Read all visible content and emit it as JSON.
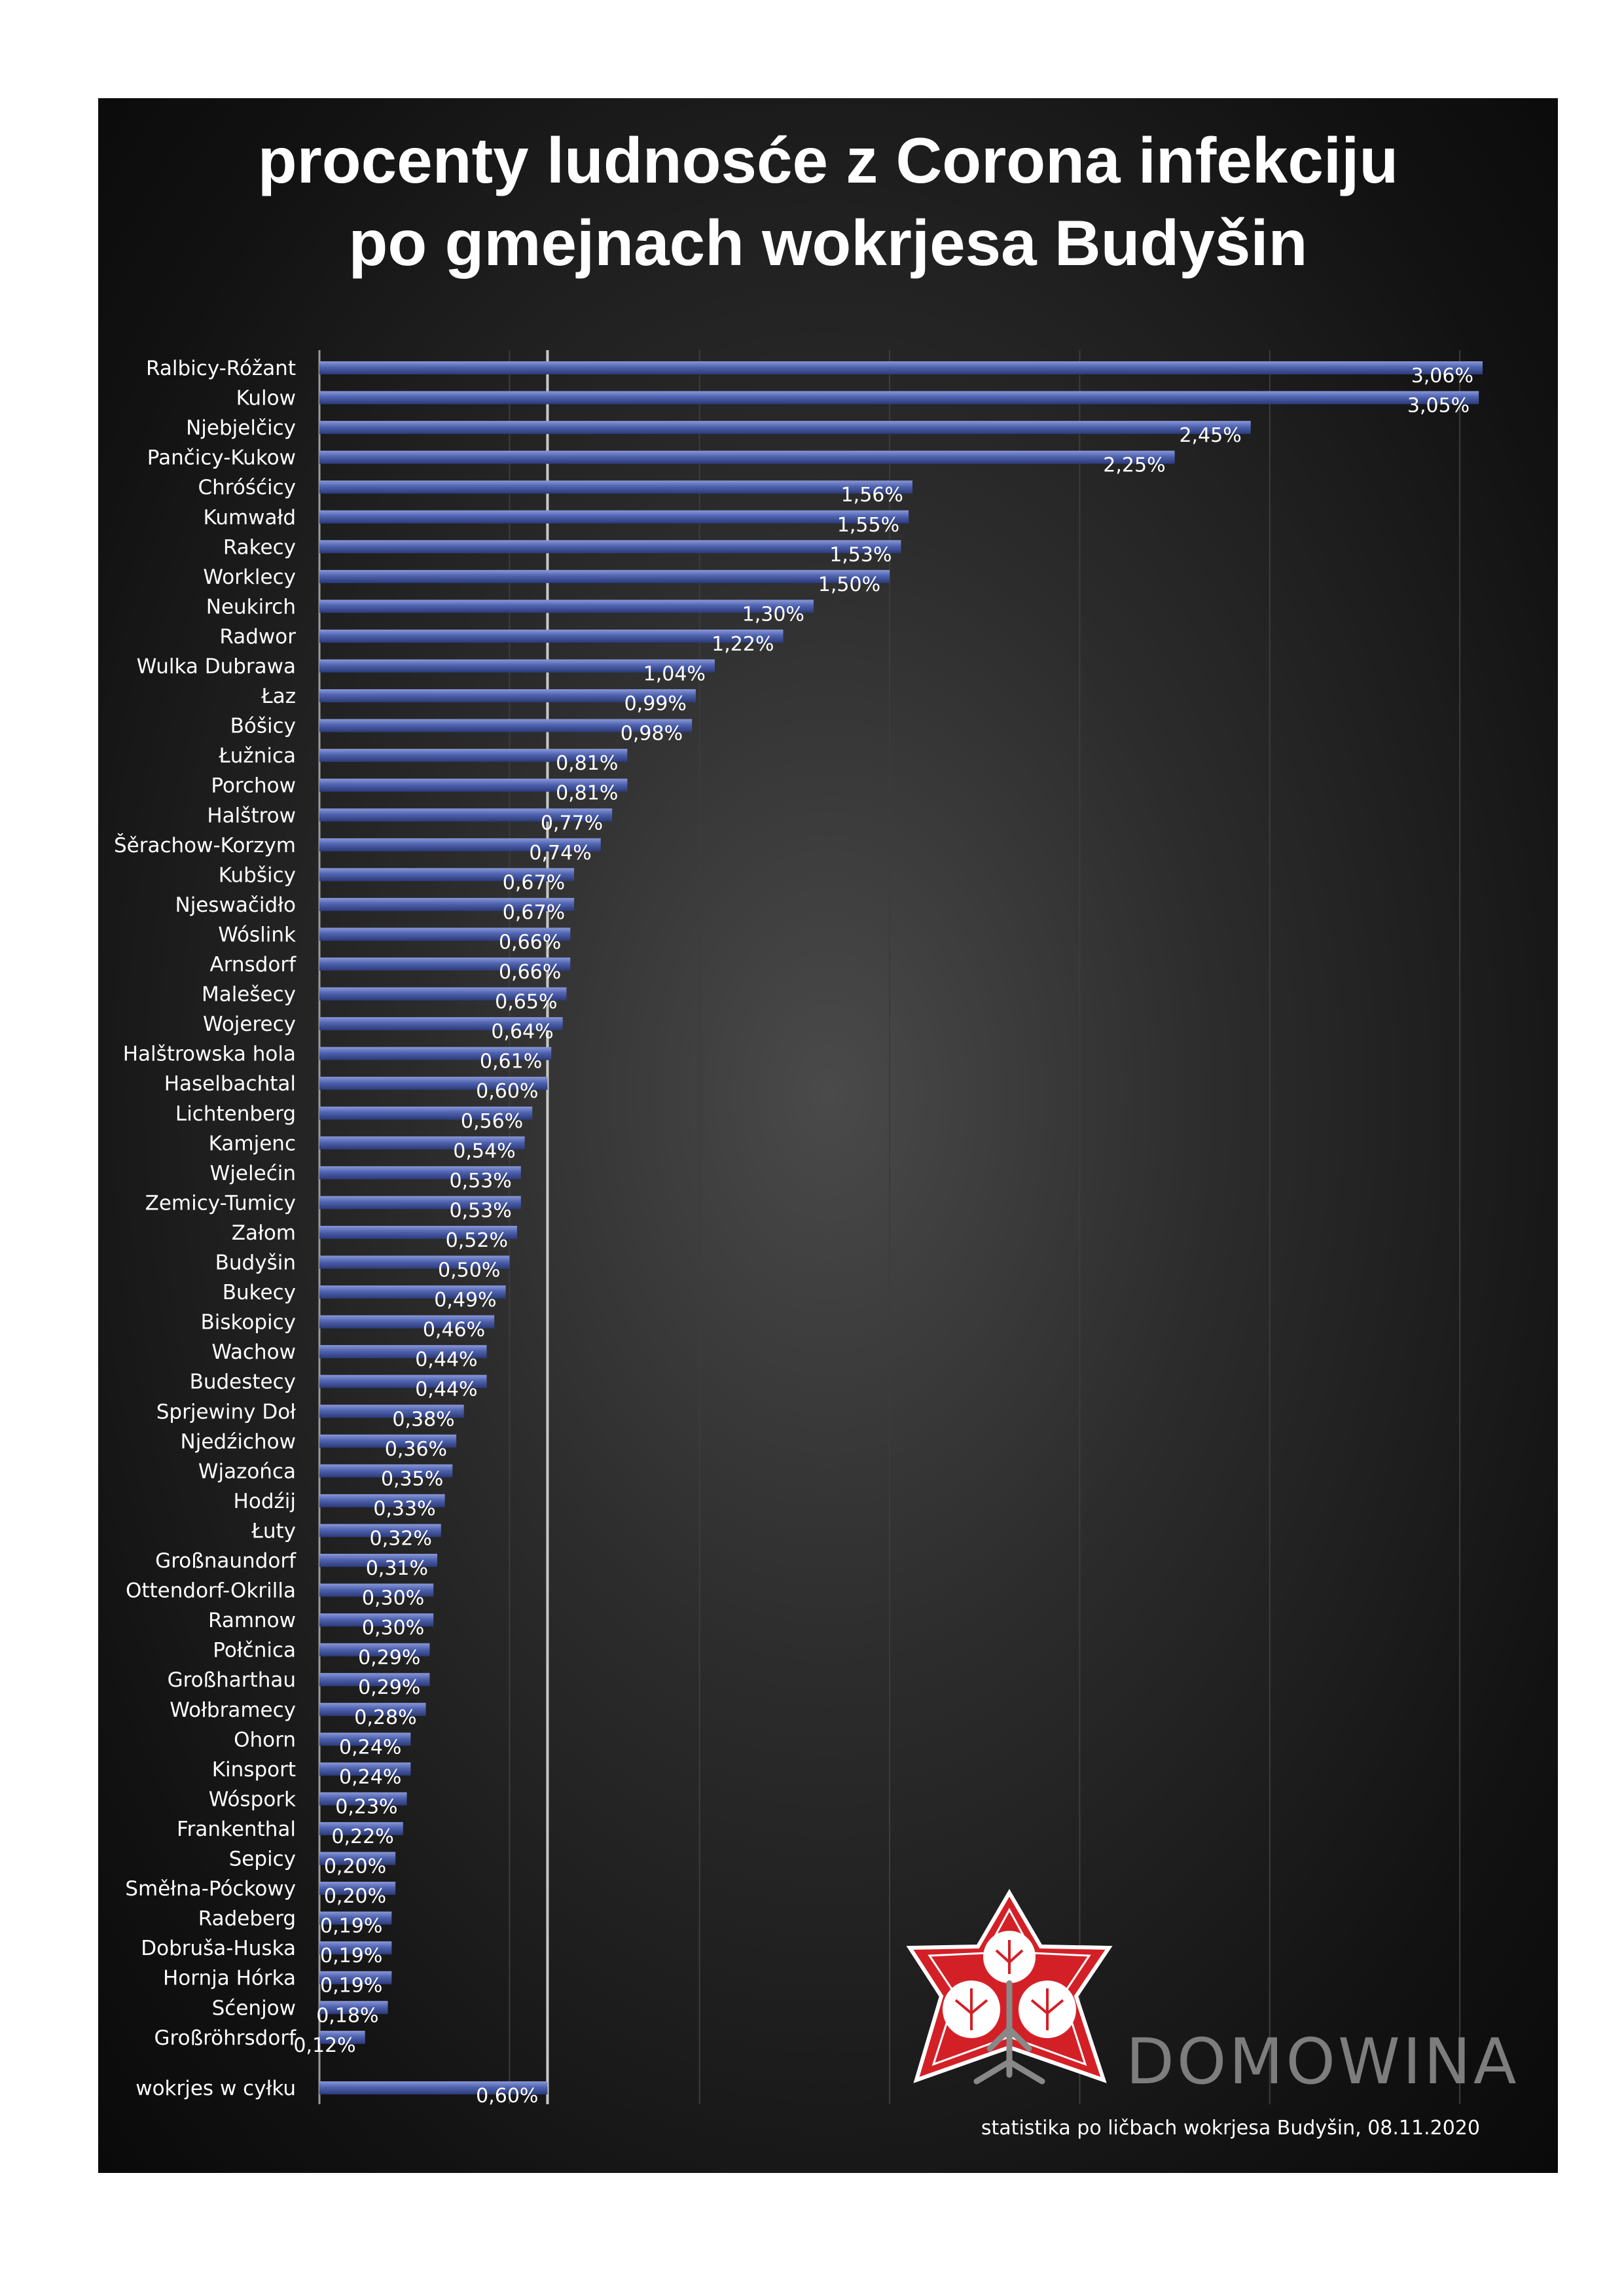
{
  "title": {
    "line1": "procenty ludnosće z Corona infekciju",
    "line2": "po gmejnach wokrjesa Budyšin"
  },
  "source": "statistika po ličbach wokrjesa Budyšin, 08.11.2020",
  "brand": {
    "name": "DOMOWINA"
  },
  "colors": {
    "bar": "#4a5ea8",
    "bar_highlight": "#8090d0",
    "background": "#1a1a1a",
    "text": "#ffffff",
    "brand": "#7d7d7d",
    "logo_red": "#d32027"
  },
  "chart_data": {
    "type": "bar",
    "orientation": "horizontal",
    "title": "procenty ludnosće z Corona infekciju po gmejnach wokrjesa Budyšin",
    "xlim": [
      0,
      3.1
    ],
    "grid": true,
    "reference_line": 0.6,
    "categories": [
      "Ralbicy-Róžant",
      "Kulow",
      "Njebjelčicy",
      "Pančicy-Kukow",
      "Chróśćicy",
      "Kumwałd",
      "Rakecy",
      "Worklecy",
      "Neukirch",
      "Radwor",
      "Wulka Dubrawa",
      "Łaz",
      "Bóšicy",
      "Łužnica",
      "Porchow",
      "Halštrow",
      "Šěrachow-Korzym",
      "Kubšicy",
      "Njeswačidło",
      "Wóslink",
      "Arnsdorf",
      "Malešecy",
      "Wojerecy",
      "Halštrowska hola",
      "Haselbachtal",
      "Lichtenberg",
      "Kamjenc",
      "Wjelećin",
      "Zemicy-Tumicy",
      "Załom",
      "Budyšin",
      "Bukecy",
      "Biskopicy",
      "Wachow",
      "Budestecy",
      "Sprjewiny Doł",
      "Njedźichow",
      "Wjazońca",
      "Hodźij",
      "Łuty",
      "Großnaundorf",
      "Ottendorf-Okrilla",
      "Ramnow",
      "Połčnica",
      "Großharthau",
      "Wołbramecy",
      "Ohorn",
      "Kinsport",
      "Wóspork",
      "Frankenthal",
      "Sepicy",
      "Směłna-Póckowy",
      "Radeberg",
      "Dobruša-Huska",
      "Hornja Hórka",
      "Sćenjow",
      "Großröhrsdorf"
    ],
    "values": [
      3.06,
      3.05,
      2.45,
      2.25,
      1.56,
      1.55,
      1.53,
      1.5,
      1.3,
      1.22,
      1.04,
      0.99,
      0.98,
      0.81,
      0.81,
      0.77,
      0.74,
      0.67,
      0.67,
      0.66,
      0.66,
      0.65,
      0.64,
      0.61,
      0.6,
      0.56,
      0.54,
      0.53,
      0.53,
      0.52,
      0.5,
      0.49,
      0.46,
      0.44,
      0.44,
      0.38,
      0.36,
      0.35,
      0.33,
      0.32,
      0.31,
      0.3,
      0.3,
      0.29,
      0.29,
      0.28,
      0.24,
      0.24,
      0.23,
      0.22,
      0.2,
      0.2,
      0.19,
      0.19,
      0.19,
      0.18,
      0.12
    ],
    "value_labels": [
      "3,06%",
      "3,05%",
      "2,45%",
      "2,25%",
      "1,56%",
      "1,55%",
      "1,53%",
      "1,50%",
      "1,30%",
      "1,22%",
      "1,04%",
      "0,99%",
      "0,98%",
      "0,81%",
      "0,81%",
      "0,77%",
      "0,74%",
      "0,67%",
      "0,67%",
      "0,66%",
      "0,66%",
      "0,65%",
      "0,64%",
      "0,61%",
      "0,60%",
      "0,56%",
      "0,54%",
      "0,53%",
      "0,53%",
      "0,52%",
      "0,50%",
      "0,49%",
      "0,46%",
      "0,44%",
      "0,44%",
      "0,38%",
      "0,36%",
      "0,35%",
      "0,33%",
      "0,32%",
      "0,31%",
      "0,30%",
      "0,30%",
      "0,29%",
      "0,29%",
      "0,28%",
      "0,24%",
      "0,24%",
      "0,23%",
      "0,22%",
      "0,20%",
      "0,20%",
      "0,19%",
      "0,19%",
      "0,19%",
      "0,18%",
      "0,12%"
    ],
    "total": {
      "label": "wokrjes w cyłku",
      "value": 0.6,
      "value_label": "0,60%"
    }
  }
}
